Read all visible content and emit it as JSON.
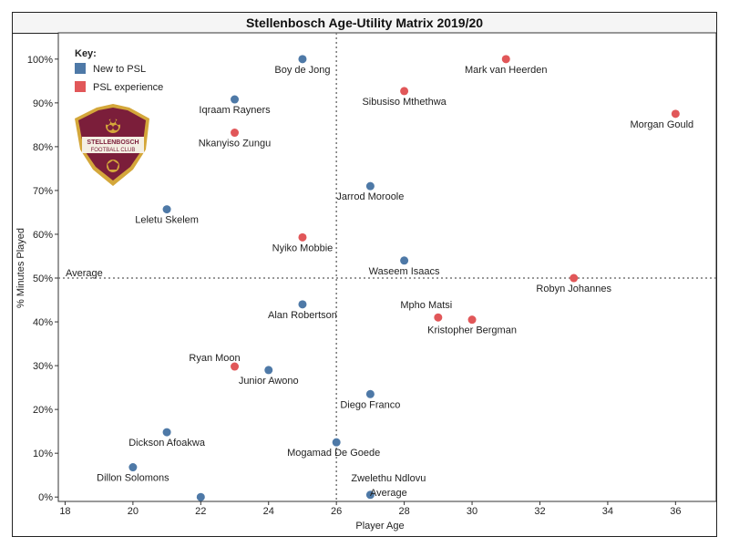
{
  "chart_data": {
    "type": "scatter",
    "title": "Stellenbosch Age-Utility Matrix 2019/20",
    "xlabel": "Player Age",
    "ylabel": "% Minutes Played",
    "xlim": [
      17.8,
      37.2
    ],
    "ylim": [
      -1,
      106
    ],
    "x_ticks": [
      18,
      20,
      22,
      24,
      26,
      28,
      30,
      32,
      34,
      36
    ],
    "y_ticks": [
      0,
      10,
      20,
      30,
      40,
      50,
      60,
      70,
      80,
      90,
      100
    ],
    "y_tick_labels": [
      "0%",
      "10%",
      "20%",
      "30%",
      "40%",
      "50%",
      "60%",
      "70%",
      "80%",
      "90%",
      "100%"
    ],
    "average_x": 26,
    "average_y": 50,
    "average_label": "Average",
    "legend": {
      "title": "Key:",
      "position": "top-left",
      "entries": [
        {
          "name": "New to PSL",
          "color": "#4e79a7"
        },
        {
          "name": "PSL experience",
          "color": "#e15759"
        }
      ]
    },
    "points": [
      {
        "name": "Boy de Jong",
        "x": 25,
        "y": 100,
        "group": "New to PSL"
      },
      {
        "name": "Mark van Heerden",
        "x": 31,
        "y": 100,
        "group": "PSL experience"
      },
      {
        "name": "Sibusiso Mthethwa",
        "x": 28,
        "y": 92.7,
        "group": "PSL experience"
      },
      {
        "name": "Iqraam Rayners",
        "x": 23,
        "y": 90.8,
        "group": "New to PSL"
      },
      {
        "name": "Morgan Gould",
        "x": 36,
        "y": 87.5,
        "group": "PSL experience"
      },
      {
        "name": "Nkanyiso Zungu",
        "x": 23,
        "y": 83.2,
        "group": "PSL experience"
      },
      {
        "name": "Jarrod Moroole",
        "x": 27,
        "y": 71,
        "group": "New to PSL"
      },
      {
        "name": "Leletu Skelem",
        "x": 21,
        "y": 65.7,
        "group": "New to PSL"
      },
      {
        "name": "Nyiko Mobbie",
        "x": 25,
        "y": 59.3,
        "group": "PSL experience"
      },
      {
        "name": "Waseem Isaacs",
        "x": 28,
        "y": 54,
        "group": "New to PSL"
      },
      {
        "name": "Robyn Johannes",
        "x": 33,
        "y": 50,
        "group": "PSL experience"
      },
      {
        "name": "Alan Robertson",
        "x": 25,
        "y": 44,
        "group": "New to PSL"
      },
      {
        "name": "Mpho Matsi",
        "x": 29,
        "y": 41,
        "group": "PSL experience"
      },
      {
        "name": "Kristopher Bergman",
        "x": 30,
        "y": 40.5,
        "group": "PSL experience"
      },
      {
        "name": "Ryan Moon",
        "x": 23,
        "y": 29.8,
        "group": "PSL experience"
      },
      {
        "name": "Junior Awono",
        "x": 24,
        "y": 29,
        "group": "New to PSL"
      },
      {
        "name": "Diego Franco",
        "x": 27,
        "y": 23.5,
        "group": "New to PSL"
      },
      {
        "name": "Dickson Afoakwa",
        "x": 21,
        "y": 14.8,
        "group": "New to PSL"
      },
      {
        "name": "Mogamad De Goede",
        "x": 26,
        "y": 12.5,
        "group": "New to PSL"
      },
      {
        "name": "Dillon Solomons",
        "x": 20,
        "y": 6.8,
        "group": "New to PSL"
      },
      {
        "name": "Zwelethu Ndlovu",
        "x": 27,
        "y": 0.5,
        "group": "New to PSL"
      },
      {
        "name": "",
        "x": 22,
        "y": 0,
        "group": "New to PSL"
      }
    ]
  },
  "logo": {
    "line1": "STELLENBOSCH",
    "line2": "FOOTBALL CLUB",
    "colors": {
      "maroon": "#7b1e3a",
      "gold": "#d4a73a"
    }
  }
}
